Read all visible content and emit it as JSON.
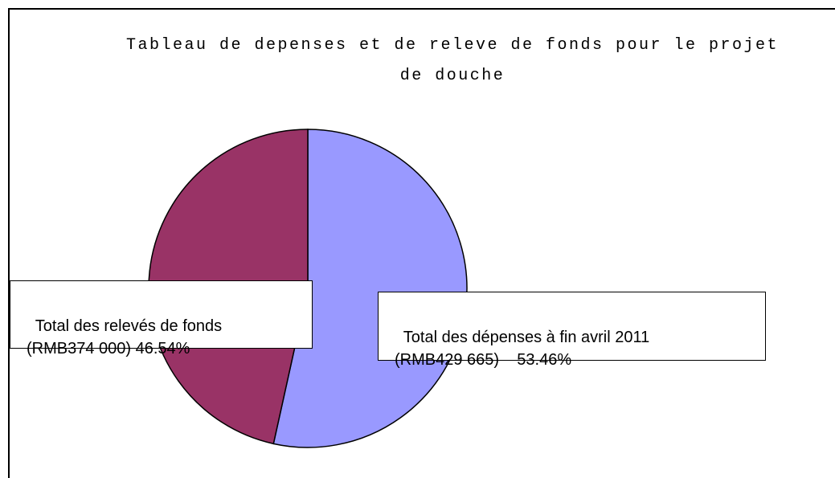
{
  "chart_data": {
    "type": "pie",
    "title": "Tableau de depenses et de releve de fonds pour le projet de douche",
    "categories": [
      "Total des dépenses à fin avril 2011",
      "Total des relevés de fonds"
    ],
    "amount_labels": [
      "(RMB429 665)",
      "(RMB374 000)"
    ],
    "values": [
      53.46,
      46.54
    ],
    "value_labels": [
      "53.46%",
      "46.54%"
    ],
    "colors": [
      "#9999ff",
      "#993366"
    ]
  }
}
